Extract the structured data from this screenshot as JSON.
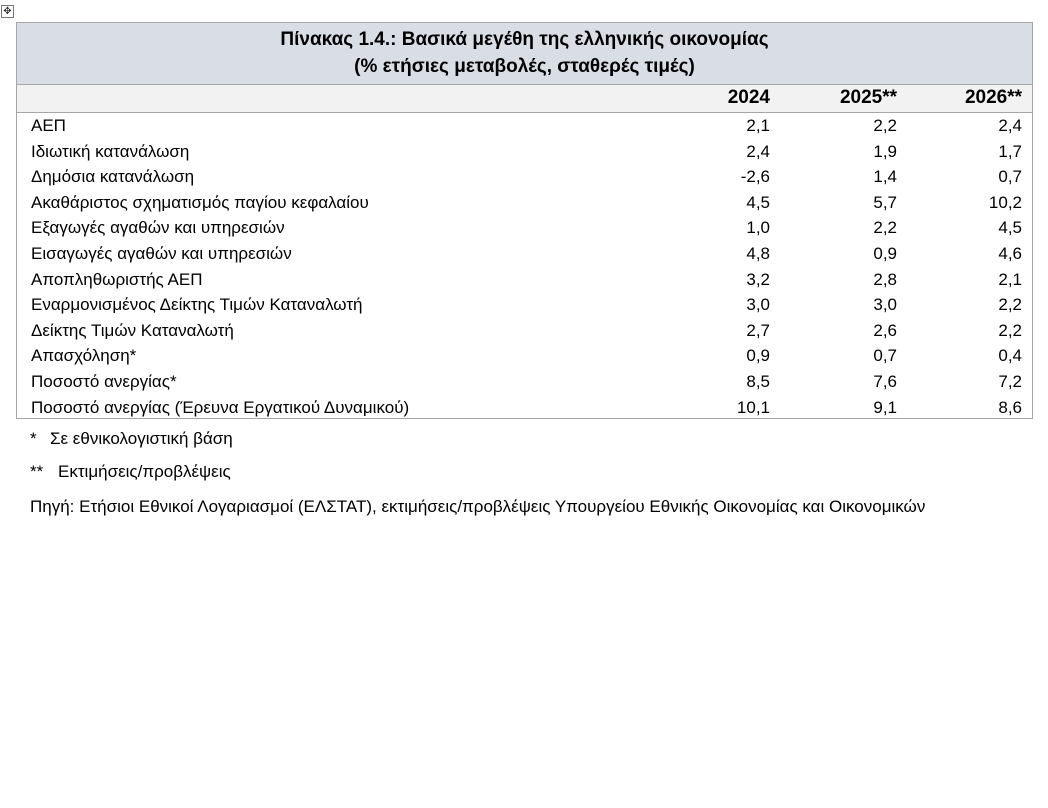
{
  "table": {
    "title": [
      "Πίνακας 1.4.: Βασικά μεγέθη της ελληνικής οικονομίας",
      "(% ετήσιες μεταβολές, σταθερές τιμές)"
    ],
    "headers": [
      "2024",
      "2025**",
      "2026**"
    ],
    "rows": [
      [
        "ΑΕΠ",
        "2,1",
        "2,2",
        "2,4"
      ],
      [
        "Ιδιωτική κατανάλωση",
        "2,4",
        "1,9",
        "1,7"
      ],
      [
        "Δημόσια κατανάλωση",
        "-2,6",
        "1,4",
        "0,7"
      ],
      [
        "Ακαθάριστος σχηματισμός παγίου κεφαλαίου",
        "4,5",
        "5,7",
        "10,2"
      ],
      [
        "Εξαγωγές αγαθών και υπηρεσιών",
        "1,0",
        "2,2",
        "4,5"
      ],
      [
        "Εισαγωγές αγαθών και υπηρεσιών",
        "4,8",
        "0,9",
        "4,6"
      ],
      [
        "Αποπληθωριστής ΑΕΠ",
        "3,2",
        "2,8",
        "2,1"
      ],
      [
        "Εναρμονισμένος Δείκτης Τιμών Καταναλωτή",
        "3,0",
        "3,0",
        "2,2"
      ],
      [
        "Δείκτης Τιμών Καταναλωτή",
        "2,7",
        "2,6",
        "2,2"
      ],
      [
        "Απασχόληση*",
        "0,9",
        "0,7",
        "0,4"
      ],
      [
        "Ποσοστό ανεργίας*",
        "8,5",
        "7,6",
        "7,2"
      ],
      [
        "Ποσοστό ανεργίας (Έρευνα Εργατικού Δυναμικού)",
        "10,1",
        "9,1",
        "8,6"
      ]
    ]
  },
  "notes": [
    {
      "marker": "*",
      "text": "Σε εθνικολογιστική βάση"
    },
    {
      "marker": "**",
      "text": "Εκτιμήσεις/προβλέψεις"
    }
  ],
  "source": "Πηγή: Ετήσιοι Εθνικοί Λογαριασμοί (ΕΛΣΤΑΤ), εκτιμήσεις/προβλέψεις Υπουργείου Εθνικής Οικονομίας και Οικονομικών"
}
